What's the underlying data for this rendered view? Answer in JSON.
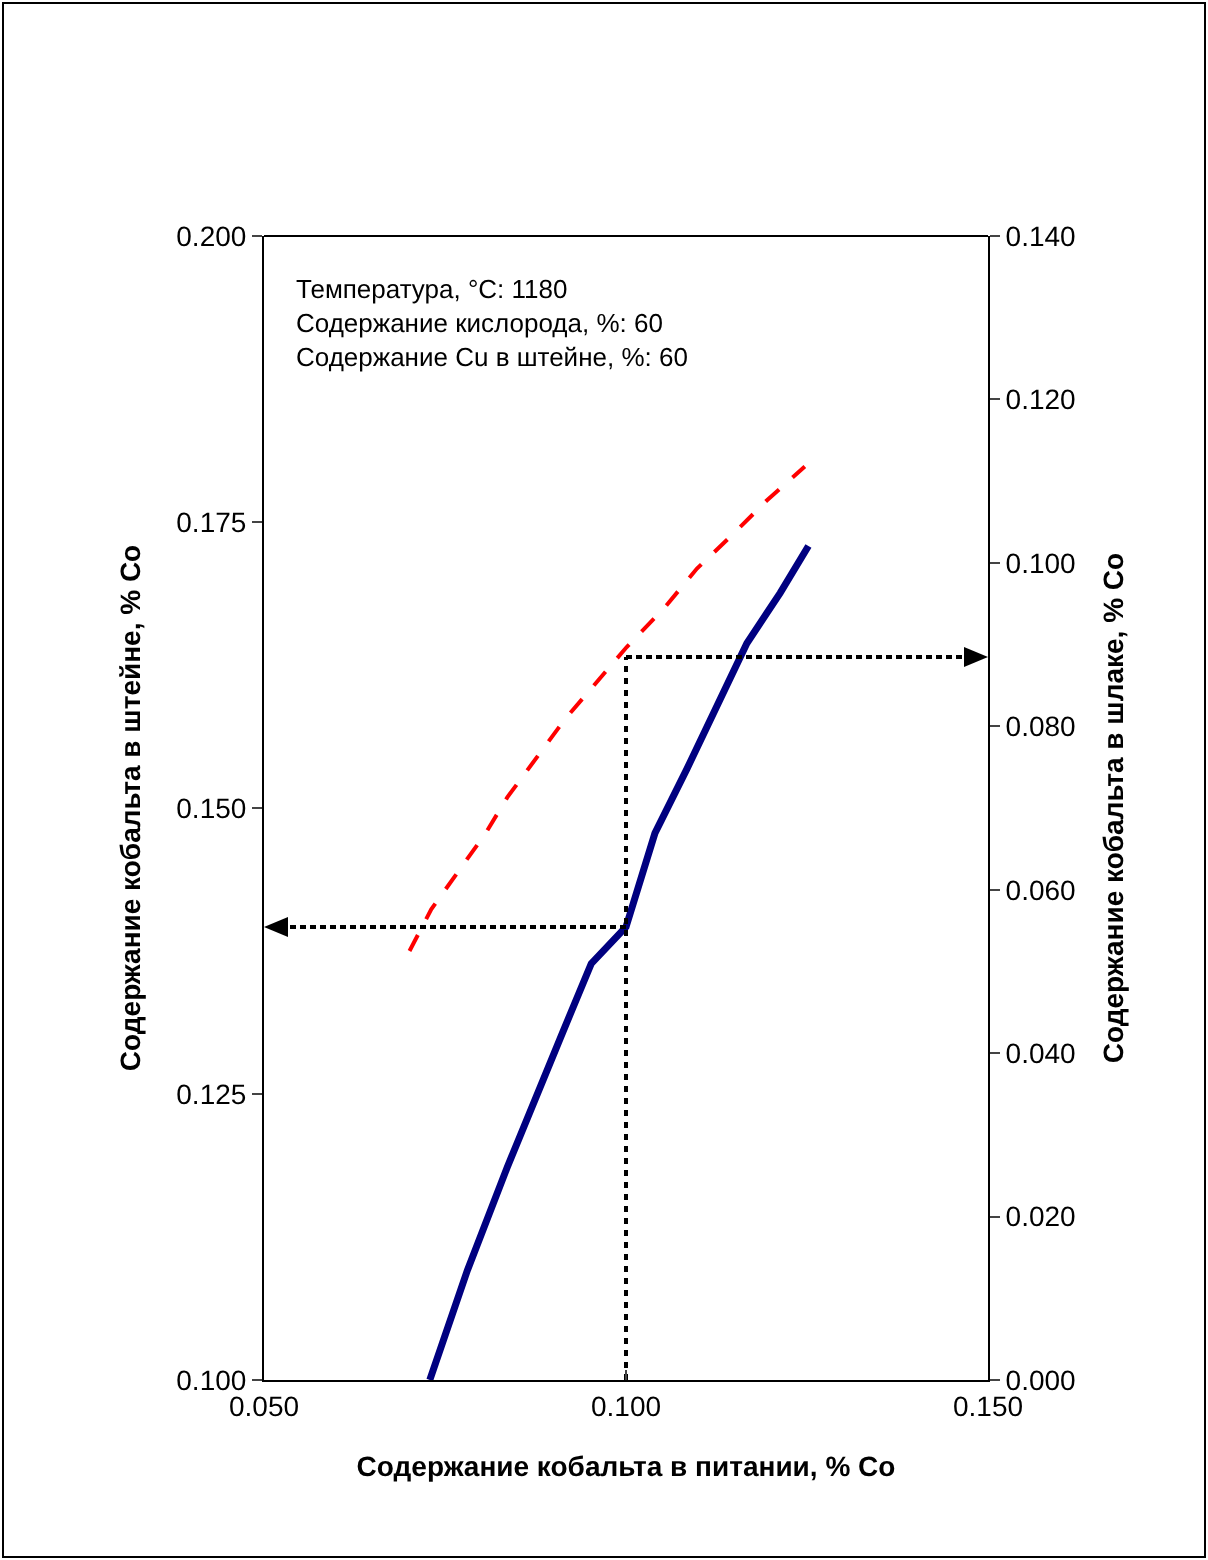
{
  "chart_data": {
    "type": "line",
    "xlabel": "Содержание кобальта в питании, % Co",
    "ylabel": "Содержание кобальта в штейне, % Co",
    "y2label": "Содержание кобальта в шлаке, % Co",
    "annotations": [
      "Температура, °C: 1180",
      "Содержание кислорода, %: 60",
      "Содержание Cu в штейне, %: 60"
    ],
    "xlim": [
      0.05,
      0.15
    ],
    "xticks": [
      {
        "value": 0.05,
        "label": "0.050"
      },
      {
        "value": 0.1,
        "label": "0.100"
      },
      {
        "value": 0.15,
        "label": "0.150"
      }
    ],
    "ylim": [
      0.1,
      0.2
    ],
    "yticks": [
      {
        "value": 0.1,
        "label": "0.100"
      },
      {
        "value": 0.125,
        "label": "0.125"
      },
      {
        "value": 0.15,
        "label": "0.150"
      },
      {
        "value": 0.175,
        "label": "0.175"
      },
      {
        "value": 0.2,
        "label": "0.200"
      }
    ],
    "y2lim": [
      0,
      0.14
    ],
    "y2ticks": [
      {
        "value": 0,
        "label": "0.000"
      },
      {
        "value": 0.02,
        "label": "0.020"
      },
      {
        "value": 0.04,
        "label": "0.040"
      },
      {
        "value": 0.06,
        "label": "0.060"
      },
      {
        "value": 0.08,
        "label": "0.080"
      },
      {
        "value": 0.1,
        "label": "0.100"
      },
      {
        "value": 0.12,
        "label": "0.120"
      },
      {
        "value": 0.14,
        "label": "0.140"
      }
    ],
    "grid": false,
    "series": [
      {
        "color": "#000080",
        "line_style": "solid",
        "marker": "none",
        "x": [
          0.0729,
          0.0781,
          0.0836,
          0.091,
          0.0952,
          0.1,
          0.104,
          0.1084,
          0.1167,
          0.1213,
          0.1252
        ],
        "values": [
          0.1,
          0.1096,
          0.1186,
          0.13,
          0.1364,
          0.1396,
          0.1478,
          0.1534,
          0.1644,
          0.1688,
          0.1729
        ]
      },
      {
        "color": "#ff0000",
        "line_style": "dashed",
        "marker": "none",
        "axis": "y2",
        "x": [
          0.0701,
          0.0731,
          0.0806,
          0.0836,
          0.0916,
          0.1001,
          0.1054,
          0.1098,
          0.115,
          0.1194,
          0.1247
        ],
        "values": [
          0.0525,
          0.0576,
          0.0669,
          0.0713,
          0.0809,
          0.0897,
          0.0946,
          0.0993,
          0.1037,
          0.1076,
          0.1118
        ]
      },
      {
        "color": "#000000",
        "line_style": "dotted",
        "marker": "none",
        "x": [
          0.1,
          0.1
        ],
        "values": [
          0.1,
          0.1632
        ]
      }
    ]
  }
}
